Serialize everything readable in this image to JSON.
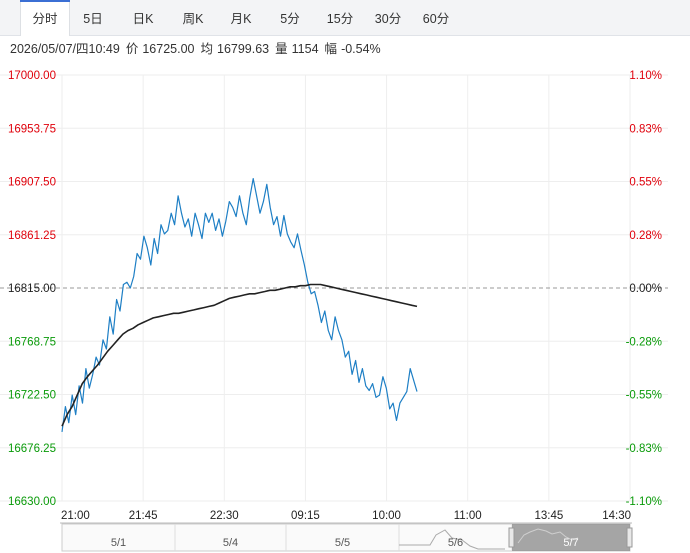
{
  "tabs": [
    {
      "label": "分时",
      "active": true
    },
    {
      "label": "5日",
      "active": false
    },
    {
      "label": "日K",
      "active": false
    },
    {
      "label": "周K",
      "active": false
    },
    {
      "label": "月K",
      "active": false
    },
    {
      "label": "5分",
      "active": false
    },
    {
      "label": "15分",
      "active": false
    },
    {
      "label": "30分",
      "active": false
    },
    {
      "label": "60分",
      "active": false
    }
  ],
  "info": {
    "datetime": "2026/05/07/四10:49",
    "price_label": "价",
    "price": "16725.00",
    "avg_label": "均",
    "avg": "16799.63",
    "volume_label": "量",
    "volume": "1154",
    "change_label": "幅",
    "change": "-0.54%"
  },
  "colors": {
    "up": "#e0000b",
    "down": "#0a9b0a",
    "price_line": "#1e7fc5",
    "avg_line": "#222222",
    "grid": "#eeeeee",
    "baseline": "#999999",
    "navigator_fill": "#888888"
  },
  "chart_data": {
    "type": "line",
    "ylim": [
      16630.0,
      17000.0
    ],
    "base_price": 16815.0,
    "y_ticks": [
      "17000.00",
      "16953.75",
      "16907.50",
      "16861.25",
      "16815.00",
      "16768.75",
      "16722.50",
      "16676.25",
      "16630.00"
    ],
    "pct_ticks": [
      "1.10%",
      "0.83%",
      "0.55%",
      "0.28%",
      "0.00%",
      "-0.28%",
      "-0.55%",
      "-0.83%",
      "-1.10%"
    ],
    "x_ticks": [
      "21:00",
      "21:45",
      "22:30",
      "09:15",
      "10:00",
      "11:00",
      "13:45",
      "14:30"
    ],
    "navigator_labels": [
      "5/1",
      "5/4",
      "5/5",
      "5/6",
      "5/7"
    ],
    "grid": true,
    "series": [
      {
        "values": [
          16690,
          16712,
          16698,
          16722,
          16705,
          16730,
          16715,
          16745,
          16728,
          16740,
          16755,
          16748,
          16770,
          16762,
          16790,
          16775,
          16805,
          16795,
          16818,
          16820,
          16815,
          16825,
          16845,
          16840,
          16860,
          16850,
          16835,
          16858,
          16845,
          16870,
          16862,
          16865,
          16880,
          16870,
          16895,
          16880,
          16868,
          16875,
          16860,
          16880,
          16870,
          16858,
          16880,
          16872,
          16880,
          16865,
          16875,
          16860,
          16873,
          16890,
          16885,
          16877,
          16895,
          16880,
          16870,
          16893,
          16910,
          16895,
          16880,
          16890,
          16905,
          16885,
          16870,
          16877,
          16860,
          16878,
          16862,
          16855,
          16850,
          16862,
          16848,
          16835,
          16820,
          16810,
          16812,
          16800,
          16785,
          16795,
          16778,
          16770,
          16790,
          16778,
          16770,
          16755,
          16760,
          16740,
          16752,
          16733,
          16745,
          16730,
          16726,
          16732,
          16720,
          16722,
          16738,
          16728,
          16710,
          16715,
          16700,
          16715,
          16720,
          16725,
          16745,
          16735,
          16725
        ]
      },
      {
        "values": [
          16695,
          16705,
          16712,
          16722,
          16732,
          16738,
          16743,
          16748,
          16754,
          16760,
          16765,
          16770,
          16775,
          16778,
          16780,
          16783,
          16785,
          16787,
          16789,
          16790,
          16791,
          16792,
          16793,
          16793,
          16794,
          16795,
          16796,
          16797,
          16798,
          16799,
          16800,
          16802,
          16804,
          16806,
          16807,
          16808,
          16809,
          16810,
          16810,
          16811,
          16812,
          16813,
          16813,
          16814,
          16815,
          16816,
          16816,
          16817,
          16817,
          16818,
          16818,
          16818,
          16817,
          16816,
          16815,
          16814,
          16813,
          16812,
          16811,
          16810,
          16809,
          16808,
          16807,
          16806,
          16805,
          16804,
          16803,
          16802,
          16801,
          16800,
          16799
        ]
      }
    ]
  }
}
